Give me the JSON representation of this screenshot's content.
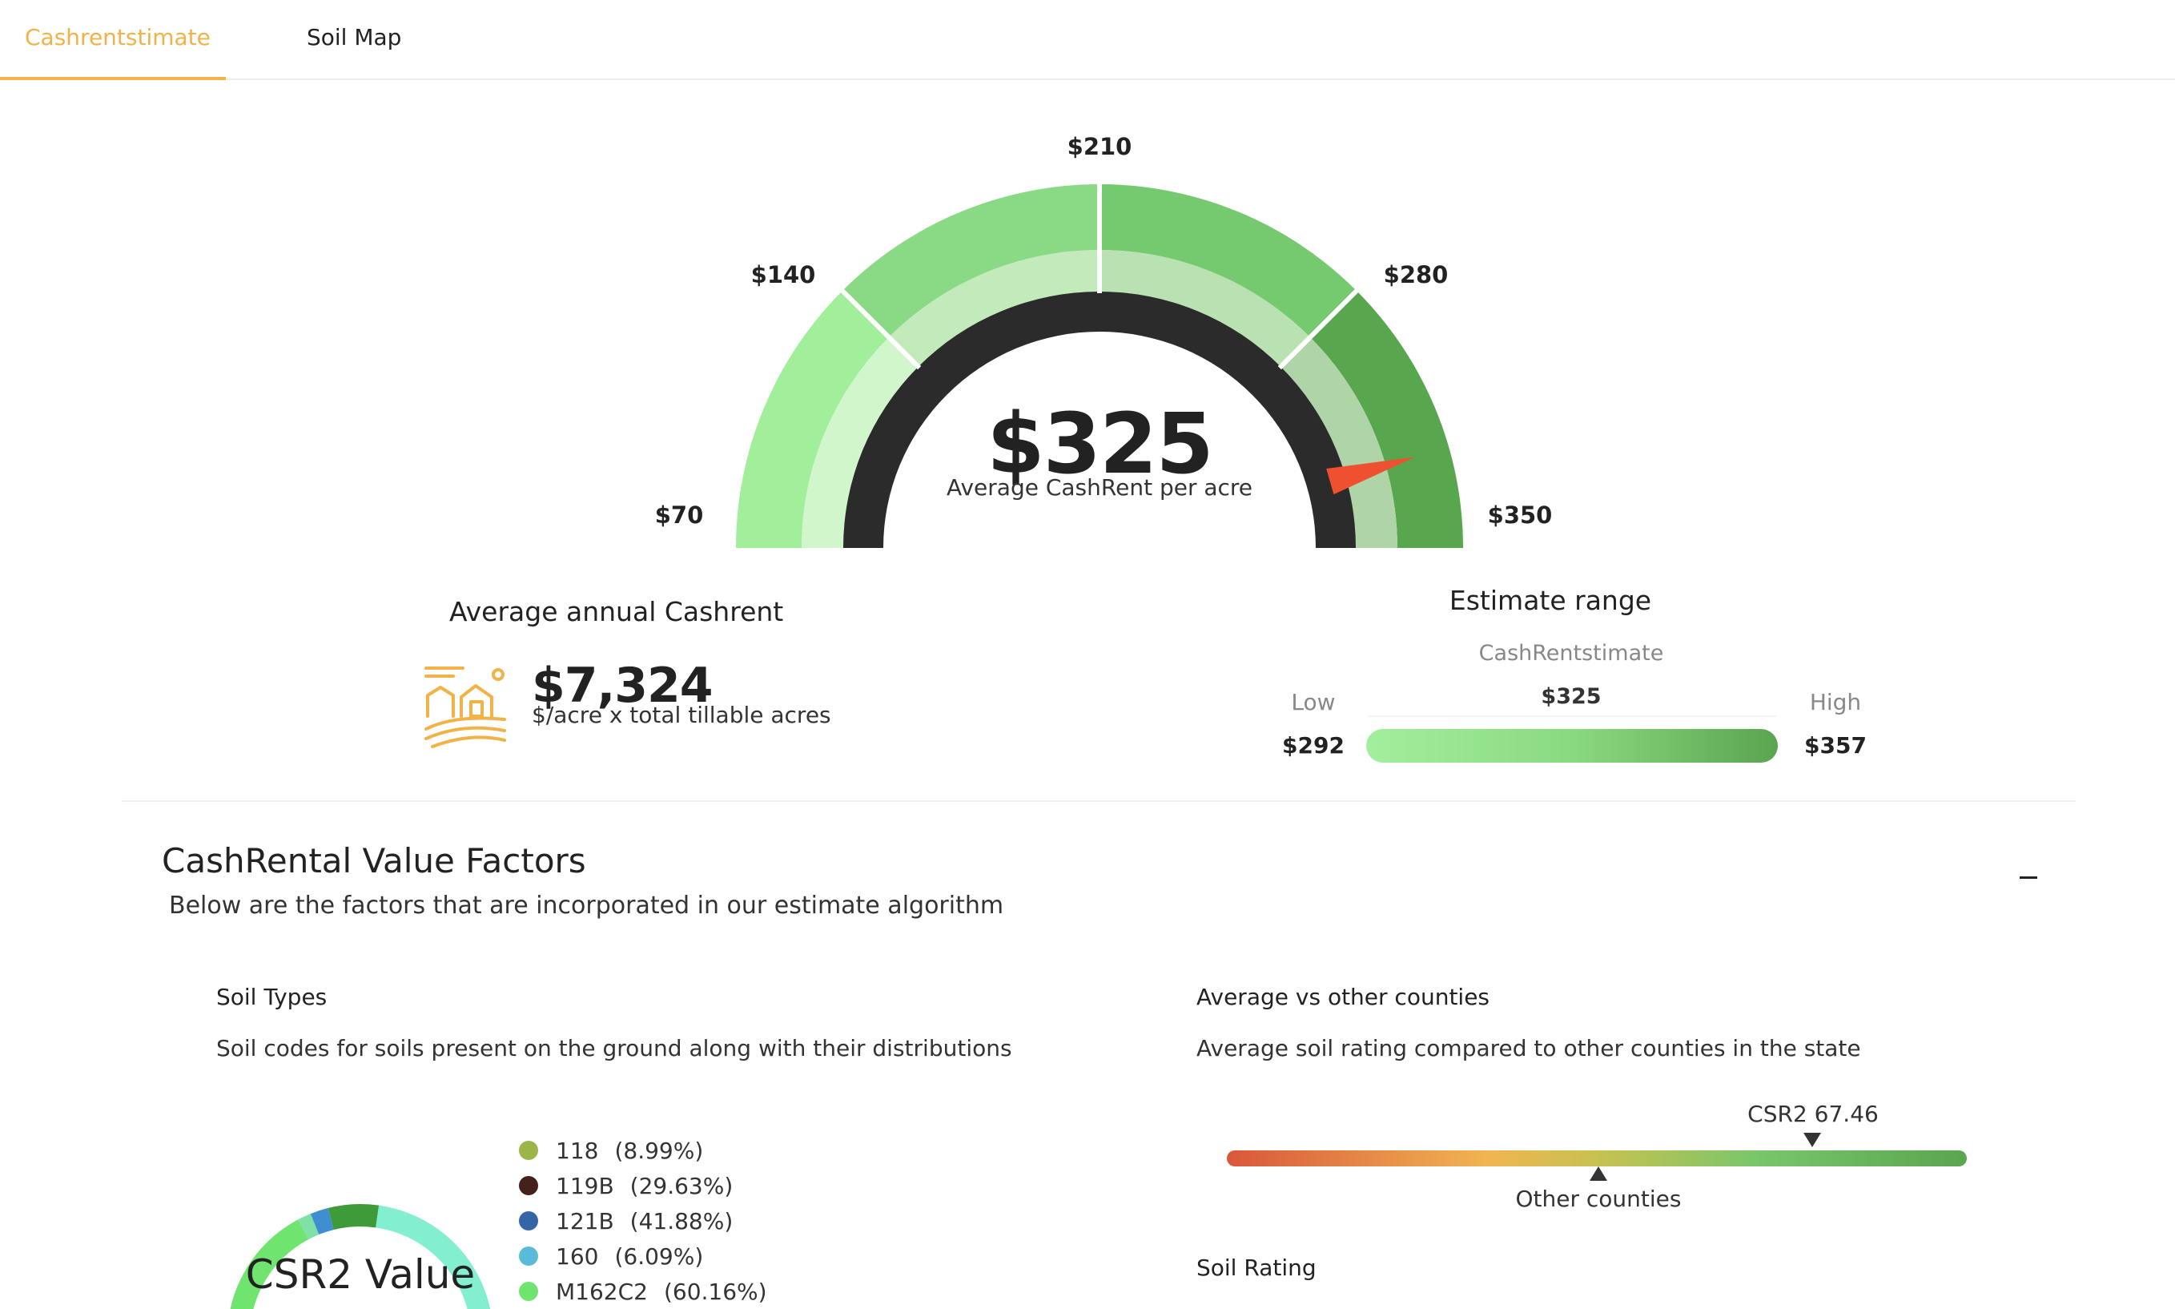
{
  "tabs": {
    "cashrent": "Cashrentstimate",
    "soilmap": "Soil Map"
  },
  "gauge": {
    "ticks": [
      "$70",
      "$140",
      "$210",
      "$280",
      "$350"
    ],
    "min": 70,
    "max": 350,
    "value": 325,
    "value_label": "$325",
    "caption": "Average CashRent per acre",
    "colors": {
      "outer": [
        "#a1ee9b",
        "#8ad985",
        "#75c96e",
        "#58a74f"
      ],
      "inner": [
        "#d2f6cc",
        "#c3eabb",
        "#b9e1b1",
        "#aed4a7"
      ],
      "ring": "#2b2b2b",
      "needle": "#ef5030"
    }
  },
  "annual": {
    "title": "Average annual Cashrent",
    "value": "$7,324",
    "subtitle": "$/acre x total tillable acres",
    "icon": "farm-icon",
    "icon_color": "#f1b347"
  },
  "estimate_range": {
    "title": "Estimate range",
    "subtitle": "CashRentstimate",
    "mid_value": "$325",
    "low_label": "Low",
    "high_label": "High",
    "low_value": "$292",
    "high_value": "$357"
  },
  "factors": {
    "title": "CashRental Value Factors",
    "subtitle": "Below are the factors that are incorporated in our estimate algorithm",
    "collapse_icon": "minus-icon"
  },
  "soil_types": {
    "title": "Soil Types",
    "description": "Soil codes for soils present on the ground along with their distributions",
    "donut_label": "CSR2 Value",
    "items": [
      {
        "code": "118",
        "pct": "(8.99%)",
        "color": "#9bb548"
      },
      {
        "code": "119B",
        "pct": "(29.63%)",
        "color": "#45211d"
      },
      {
        "code": "121B",
        "pct": "(41.88%)",
        "color": "#3466a5"
      },
      {
        "code": "160",
        "pct": "(6.09%)",
        "color": "#58bbd9"
      },
      {
        "code": "M162C2",
        "pct": "(60.16%)",
        "color": "#6fe56f"
      }
    ]
  },
  "county_compare": {
    "title": "Average vs other counties",
    "description": "Average soil rating compared to other counties in the state",
    "csr_label": "CSR2 67.46",
    "other_label": "Other counties"
  },
  "soil_rating": {
    "title": "Soil Rating"
  }
}
